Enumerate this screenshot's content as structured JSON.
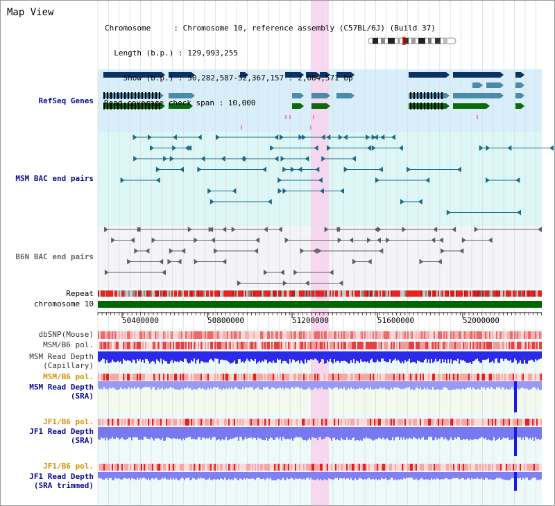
{
  "app": {
    "title": "Map View"
  },
  "header": {
    "chromosome_line": "Chromosome     : Chromosome 10, reference assembly (C57BL/6J) (Build 37)",
    "length_line": "  Length (b.p.) : 129,993,255",
    "show_line": "    Show (b.p.) : 50,282,587-52,367,157 : 2,084,571 bp",
    "coverage_line": "Read coverage check span : 10,000"
  },
  "tracks": {
    "refseq": "RefSeq Genes",
    "msm_bac": "MSM BAC end pairs",
    "b6n_bac": "B6N BAC end pairs",
    "repeat": "Repeat",
    "chromosome": "chromosome 10",
    "dbsnp": "dbSNP(Mouse)",
    "msm_b6_pol_1": "MSM/B6 pol.",
    "msm_depth_cap_1": "MSM Read Depth",
    "msm_depth_cap_2": "(Capillary)",
    "msm_b6_pol_2": "MSM/B6 pol.",
    "msm_depth_sra_1": "MSM Read Depth",
    "msm_depth_sra_2": "(SRA)",
    "jf1_b6_pol_1": "JF1/B6 pol.",
    "jf1_depth_sra_1": "JF1 Read Depth",
    "jf1_depth_sra_2": "(SRA)",
    "jf1_b6_pol_2": "JF1/B6 pol.",
    "jf1_depth_trim_1": "JF1 Read Depth",
    "jf1_depth_trim_2": "(SRA trimmed)"
  },
  "ruler": {
    "ticks": [
      "50400000",
      "50800000",
      "51200000",
      "51600000",
      "52000000"
    ]
  },
  "colors": {
    "refseq_bg": "#d8eefa",
    "msm_bac_bg": "#ddf6f6",
    "b6n_bg": "#f4f4f8",
    "highlight": "#f8d4f0",
    "chromosome": "#006600",
    "navy_label": "#0a0a96",
    "orange_label": "#d89000",
    "gene_navy": "#0a3264",
    "gene_blue": "#4a8aaa",
    "gene_green": "#0a6a0a",
    "bac_teal": "#1a6a88",
    "bac_gray": "#606060"
  }
}
